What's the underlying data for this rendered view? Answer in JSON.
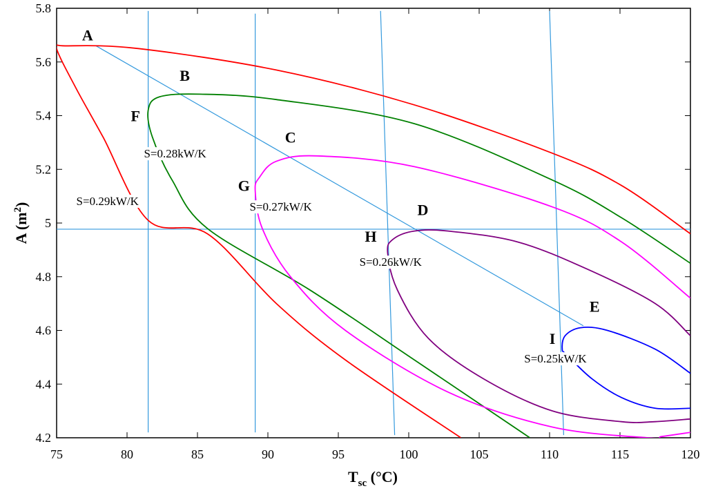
{
  "chart_data": {
    "type": "line",
    "xlabel_parts": [
      "T",
      "sc",
      " (°C)"
    ],
    "ylabel_parts": [
      "A (m",
      "2",
      ")"
    ],
    "xlim": [
      75,
      120
    ],
    "ylim": [
      4.2,
      5.8
    ],
    "xticks": [
      75,
      80,
      85,
      90,
      95,
      100,
      105,
      110,
      115,
      120
    ],
    "yticks": [
      4.2,
      4.4,
      4.6,
      4.8,
      5,
      5.2,
      5.4,
      5.6,
      5.8
    ],
    "series": [
      {
        "color": "#ff0000",
        "x": [
          103.7,
          95.5,
          90.6,
          85.7,
          81.5,
          78.3,
          76.4,
          75.0,
          75.6,
          80.8,
          90.6,
          100.4,
          110.2,
          115.1,
          120
        ],
        "values": [
          4.2,
          4.49,
          4.7,
          4.96,
          5.01,
          5.32,
          5.5,
          5.65,
          5.66,
          5.65,
          5.57,
          5.44,
          5.26,
          5.14,
          4.96
        ]
      },
      {
        "color": "#008000",
        "x": [
          108.6,
          100.4,
          93.0,
          85.7,
          83.2,
          81.8,
          81.5,
          82.3,
          85.2,
          90.6,
          100.4,
          110.2,
          115.1,
          120
        ],
        "values": [
          4.2,
          4.49,
          4.75,
          4.98,
          5.16,
          5.32,
          5.42,
          5.47,
          5.48,
          5.46,
          5.37,
          5.16,
          5.02,
          4.85
        ]
      },
      {
        "color": "#ff00ff",
        "x": [
          120,
          118,
          117,
          110.2,
          102.8,
          95.5,
          91.6,
          89.6,
          89.1,
          89.4,
          90.6,
          93.5,
          100.4,
          110.2,
          115.1,
          120
        ],
        "values": [
          4.22,
          4.205,
          4.2,
          4.24,
          4.37,
          4.6,
          4.8,
          4.98,
          5.12,
          5.17,
          5.23,
          5.25,
          5.21,
          5.06,
          4.93,
          4.72
        ]
      },
      {
        "color": "#800080",
        "x": [
          120,
          117.5,
          115.1,
          110.2,
          105.3,
          101.4,
          99.2,
          98.5,
          98.9,
          100.4,
          102.8,
          107.7,
          112.6,
          117.5,
          120
        ],
        "values": [
          4.27,
          4.26,
          4.26,
          4.3,
          4.42,
          4.57,
          4.75,
          4.89,
          4.94,
          4.97,
          4.97,
          4.93,
          4.83,
          4.7,
          4.58
        ]
      },
      {
        "color": "#0000ff",
        "x": [
          120,
          117.5,
          115.1,
          113,
          111.2,
          110.9,
          111.1,
          112.2,
          114.1,
          117.5,
          120
        ],
        "values": [
          4.31,
          4.31,
          4.35,
          4.42,
          4.51,
          4.53,
          4.58,
          4.61,
          4.6,
          4.53,
          4.44
        ]
      }
    ],
    "lines": [
      {
        "color": "#3399dd",
        "x": [
          81.5,
          81.5
        ],
        "values": [
          5.79,
          4.22
        ]
      },
      {
        "color": "#3399dd",
        "x": [
          89.1,
          89.1
        ],
        "values": [
          5.78,
          4.22
        ]
      },
      {
        "color": "#3399dd",
        "x": [
          98.0,
          99.0
        ],
        "values": [
          5.79,
          4.21
        ]
      },
      {
        "color": "#3399dd",
        "x": [
          110.0,
          111.0
        ],
        "values": [
          5.79,
          4.21
        ]
      },
      {
        "color": "#3399dd",
        "x": [
          75,
          120
        ],
        "values": [
          4.977,
          4.977
        ]
      },
      {
        "color": "#3399dd",
        "x": [
          77.8,
          112.4
        ],
        "values": [
          5.66,
          4.617
        ]
      }
    ],
    "point_labels": [
      {
        "text": "A",
        "x": 77.2,
        "y": 5.68
      },
      {
        "text": "B",
        "x": 84.1,
        "y": 5.53
      },
      {
        "text": "C",
        "x": 91.6,
        "y": 5.3
      },
      {
        "text": "D",
        "x": 101,
        "y": 5.03
      },
      {
        "text": "E",
        "x": 113.2,
        "y": 4.67
      },
      {
        "text": "F",
        "x": 80.6,
        "y": 5.38
      },
      {
        "text": "G",
        "x": 88.3,
        "y": 5.12
      },
      {
        "text": "H",
        "x": 97.3,
        "y": 4.93
      },
      {
        "text": "I",
        "x": 110.2,
        "y": 4.55
      }
    ],
    "contour_labels": [
      {
        "text": "S=0.29kW/K",
        "x": 76.4,
        "y": 5.067
      },
      {
        "text": "S=0.28kW/K",
        "x": 81.2,
        "y": 5.244
      },
      {
        "text": "S=0.27kW/K",
        "x": 88.7,
        "y": 5.046
      },
      {
        "text": "S=0.26kW/K",
        "x": 96.5,
        "y": 4.84
      },
      {
        "text": "S=0.25kW/K",
        "x": 108.2,
        "y": 4.48
      }
    ]
  }
}
